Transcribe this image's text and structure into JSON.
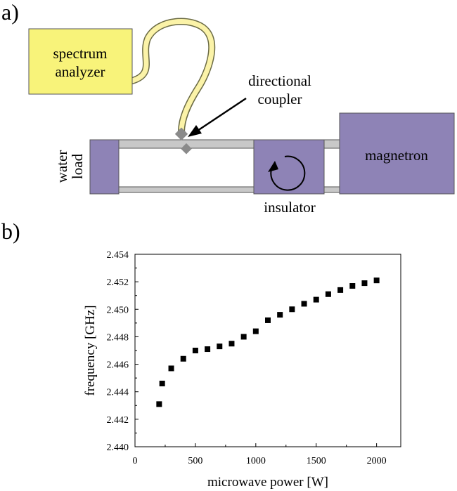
{
  "panel_a": {
    "label": "a)",
    "spectrum_analyzer": {
      "line1": "spectrum",
      "line2": "analyzer",
      "fill": "#f8f37a"
    },
    "directional_coupler": {
      "line1": "directional",
      "line2": "coupler"
    },
    "water_load": {
      "line1": "water",
      "line2": "load"
    },
    "insulator": "insulator",
    "magnetron": "magnetron",
    "colors": {
      "component": "#8e83b6",
      "waveguide": "#c8c8c8",
      "coupler": "#8a8a8a",
      "cable": "#fbf3a8"
    }
  },
  "panel_b": {
    "label": "b)"
  },
  "chart_data": {
    "type": "scatter",
    "title": "",
    "xlabel": "microwave power [W]",
    "ylabel": "frequency [GHz]",
    "xlim": [
      0,
      2200
    ],
    "ylim": [
      2.44,
      2.454
    ],
    "xticks": [
      "0",
      "500",
      "1000",
      "1500",
      "2000"
    ],
    "yticks": [
      "2.440",
      "2.442",
      "2.444",
      "2.446",
      "2.448",
      "2.450",
      "2.452",
      "2.454"
    ],
    "grid": false,
    "marker": "square",
    "x": [
      200,
      225,
      300,
      400,
      500,
      600,
      700,
      800,
      900,
      1000,
      1100,
      1200,
      1300,
      1400,
      1500,
      1600,
      1700,
      1800,
      1900,
      2000
    ],
    "y": [
      2.4431,
      2.4446,
      2.4457,
      2.4464,
      2.447,
      2.4471,
      2.4473,
      2.4475,
      2.448,
      2.4484,
      2.4492,
      2.4496,
      2.45,
      2.4504,
      2.4507,
      2.4511,
      2.4514,
      2.4517,
      2.4519,
      2.4521
    ]
  }
}
